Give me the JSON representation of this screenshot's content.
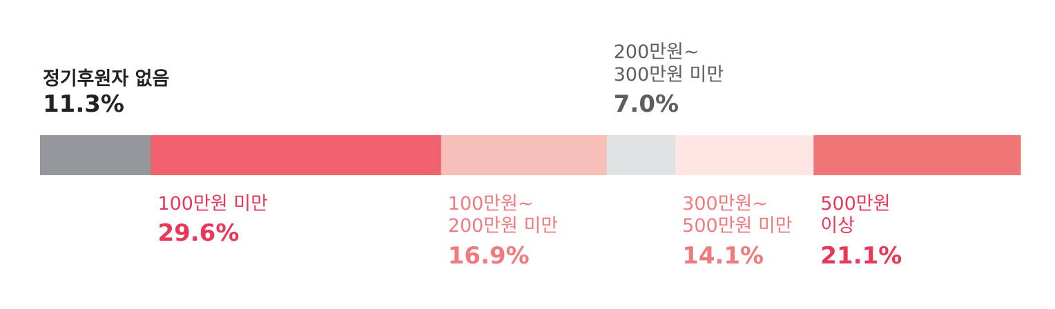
{
  "chart_data": {
    "type": "bar",
    "orientation": "horizontal-stacked",
    "unit": "%",
    "categories": [
      "정기후원자 없음",
      "100만원 미만",
      "100만원~\n200만원 미만",
      "200만원~\n300만원 미만",
      "300만원~\n500만원 미만",
      "500만원\n이상"
    ],
    "values": [
      11.3,
      29.6,
      16.9,
      7.0,
      14.1,
      21.1
    ],
    "value_labels": [
      "11.3%",
      "29.6%",
      "16.9%",
      "7.0%",
      "14.1%",
      "21.1%"
    ],
    "colors": [
      "#96979b",
      "#f0606d",
      "#f8bfb8",
      "#e1e2e4",
      "#fde6e3",
      "#f07576"
    ],
    "label_colors": [
      "#222222",
      "#e8385a",
      "#f07b7e",
      "#5e5e5e",
      "#f07b7e",
      "#e8385a"
    ],
    "label_positions": [
      "above",
      "below",
      "below",
      "above",
      "below",
      "below"
    ],
    "title": "",
    "xlabel": "",
    "ylabel": ""
  }
}
